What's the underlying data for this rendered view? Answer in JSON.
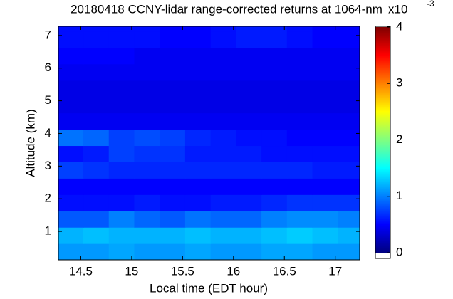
{
  "chart_data": {
    "type": "heatmap",
    "title": "20180418 CCNY-lidar range-corrected returns at 1064-nm",
    "xlabel": "Local time (EDT hour)",
    "ylabel": "Altitude (km)",
    "colormap": "jet",
    "colorbar_multiplier": {
      "base": "x10",
      "exponent": "-3"
    },
    "x": [
      14.4,
      14.65,
      14.9,
      15.15,
      15.4,
      15.65,
      15.9,
      16.15,
      16.4,
      16.65,
      16.9,
      17.15
    ],
    "y": [
      0.38,
      0.88,
      1.38,
      1.88,
      2.38,
      2.88,
      3.38,
      3.88,
      4.38,
      4.88,
      5.38,
      5.88,
      6.38,
      6.88,
      7.38
    ],
    "z": [
      [
        1.1,
        1.1,
        1.15,
        1.1,
        1.1,
        1.15,
        1.1,
        1.1,
        1.15,
        1.15,
        1.1,
        1.1
      ],
      [
        1.2,
        1.25,
        1.2,
        1.2,
        1.2,
        1.25,
        1.2,
        1.2,
        1.25,
        1.3,
        1.25,
        1.2
      ],
      [
        0.85,
        0.85,
        1.0,
        0.9,
        0.85,
        0.95,
        0.9,
        0.9,
        1.0,
        1.05,
        1.05,
        1.0
      ],
      [
        0.55,
        0.55,
        0.55,
        0.6,
        0.55,
        0.55,
        0.6,
        0.6,
        0.65,
        0.7,
        0.7,
        0.7
      ],
      [
        0.5,
        0.5,
        0.5,
        0.5,
        0.5,
        0.5,
        0.5,
        0.5,
        0.5,
        0.5,
        0.5,
        0.5
      ],
      [
        0.75,
        0.7,
        0.65,
        0.65,
        0.65,
        0.65,
        0.65,
        0.65,
        0.65,
        0.65,
        0.6,
        0.6
      ],
      [
        0.55,
        0.6,
        0.75,
        0.7,
        0.7,
        0.6,
        0.6,
        0.6,
        0.55,
        0.55,
        0.55,
        0.55
      ],
      [
        0.95,
        0.9,
        0.75,
        0.8,
        0.75,
        0.65,
        0.6,
        0.55,
        0.55,
        0.5,
        0.5,
        0.5
      ],
      [
        0.45,
        0.45,
        0.45,
        0.45,
        0.45,
        0.45,
        0.45,
        0.45,
        0.45,
        0.45,
        0.45,
        0.45
      ],
      [
        0.4,
        0.4,
        0.4,
        0.4,
        0.4,
        0.4,
        0.4,
        0.4,
        0.4,
        0.4,
        0.4,
        0.4
      ],
      [
        0.4,
        0.4,
        0.4,
        0.4,
        0.4,
        0.4,
        0.4,
        0.4,
        0.4,
        0.4,
        0.4,
        0.4
      ],
      [
        0.45,
        0.45,
        0.45,
        0.45,
        0.45,
        0.45,
        0.45,
        0.45,
        0.45,
        0.45,
        0.45,
        0.45
      ],
      [
        0.5,
        0.5,
        0.5,
        0.45,
        0.45,
        0.45,
        0.45,
        0.45,
        0.45,
        0.45,
        0.45,
        0.45
      ],
      [
        0.55,
        0.55,
        0.55,
        0.55,
        0.5,
        0.5,
        0.55,
        0.6,
        0.6,
        0.55,
        0.5,
        0.5
      ],
      [
        0.55,
        0.55,
        0.55,
        0.55,
        0.5,
        0.5,
        0.55,
        0.6,
        0.6,
        0.55,
        0.5,
        0.5
      ]
    ],
    "xlim": [
      14.28,
      17.24
    ],
    "ylim": [
      0.13,
      7.28
    ],
    "clim": [
      0,
      4
    ],
    "xticks": [
      14.5,
      15,
      15.5,
      16,
      16.5,
      17
    ],
    "yticks": [
      1,
      2,
      3,
      4,
      5,
      6,
      7
    ],
    "cticks": [
      0,
      1,
      2,
      3,
      4
    ]
  }
}
